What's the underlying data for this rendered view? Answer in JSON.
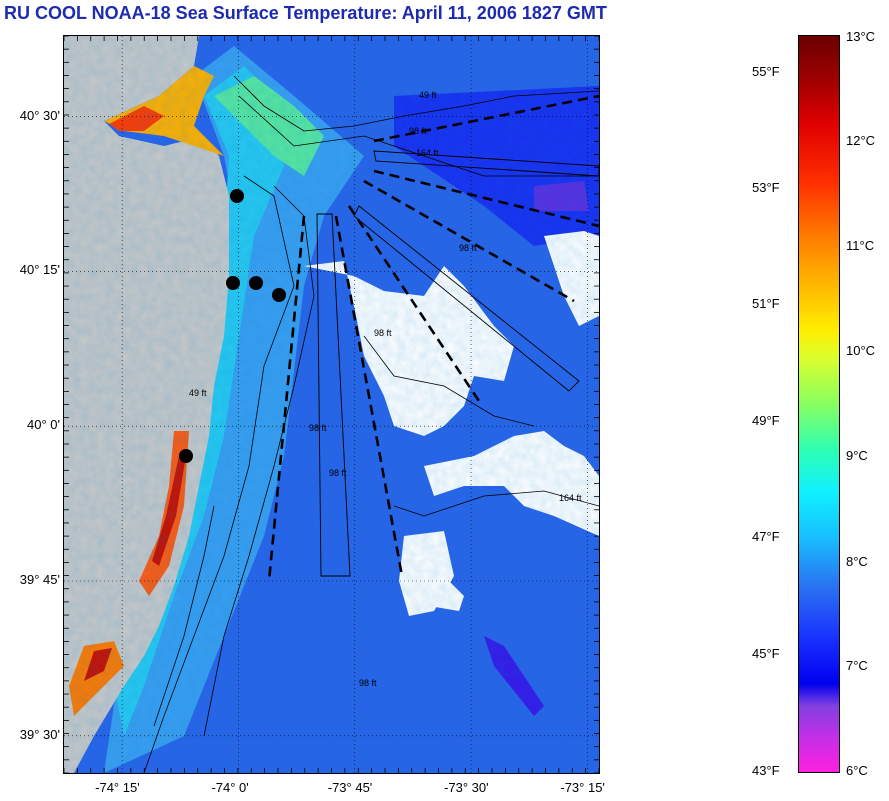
{
  "title": "RU COOL  NOAA-18  Sea Surface Temperature:  April 11, 2006 1827 GMT",
  "map": {
    "latitude_labels": [
      {
        "text": "40° 30'",
        "lat": 40.5
      },
      {
        "text": "40° 15'",
        "lat": 40.25
      },
      {
        "text": "40° 0'",
        "lat": 40.0
      },
      {
        "text": "39° 45'",
        "lat": 39.75
      },
      {
        "text": "39° 30'",
        "lat": 39.5
      }
    ],
    "longitude_labels": [
      {
        "text": "-74° 15'",
        "lon": -74.25
      },
      {
        "text": "-74° 0'",
        "lon": -74.0
      },
      {
        "text": "-73° 45'",
        "lon": -73.75
      },
      {
        "text": "-73° 30'",
        "lon": -73.5
      },
      {
        "text": "-73° 15'",
        "lon": -73.25
      }
    ],
    "depth_labels": [
      "49 ft",
      "98 ft",
      "164 ft",
      "98 ft",
      "98 ft",
      "98 ft",
      "49 ft",
      "98 ft",
      "98 ft",
      "164 ft"
    ],
    "stations": [
      {
        "name": "station",
        "lat": 40.37,
        "lon": -74.0
      },
      {
        "name": "station",
        "lat": 40.23,
        "lon": -74.01
      },
      {
        "name": "station",
        "lat": 40.23,
        "lon": -73.96
      },
      {
        "name": "station",
        "lat": 40.21,
        "lon": -73.91
      },
      {
        "name": "station",
        "lat": 39.95,
        "lon": -74.11
      }
    ],
    "colors": {
      "land": "#c8c8c8",
      "cloud": "#ffffff",
      "water_mid": "#2a63e8"
    }
  },
  "colorbar": {
    "celsius_labels": [
      "13°C",
      "12°C",
      "11°C",
      "10°C",
      "9°C",
      "8°C",
      "7°C",
      "6°C"
    ],
    "fahrenheit_labels": [
      "55°F",
      "53°F",
      "51°F",
      "49°F",
      "47°F",
      "45°F",
      "43°F"
    ]
  }
}
